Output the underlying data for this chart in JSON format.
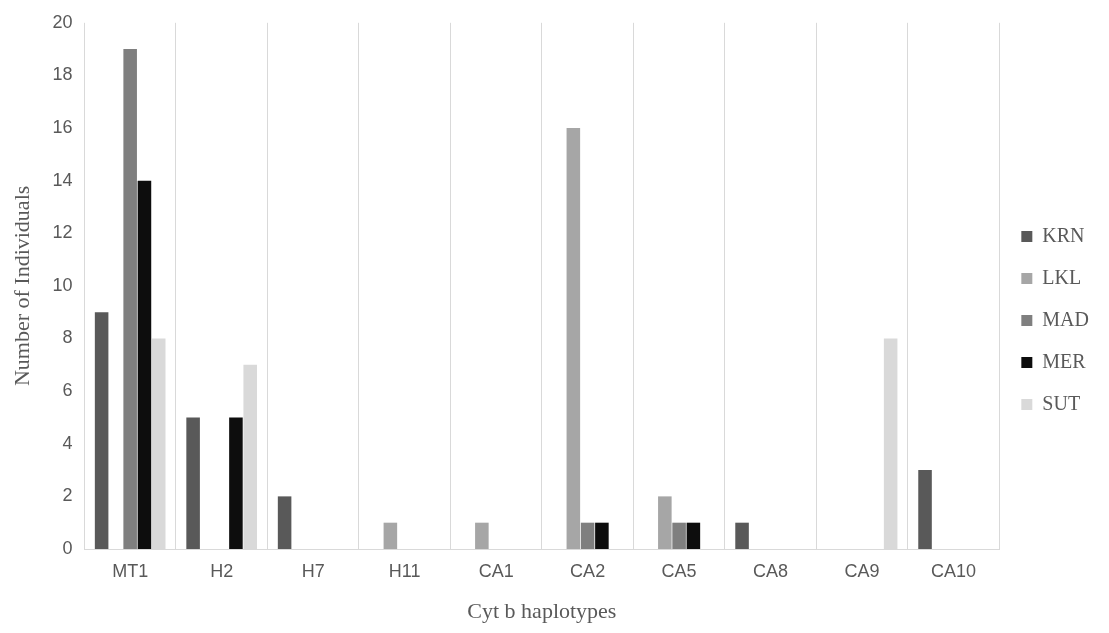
{
  "chart_data": {
    "type": "bar",
    "xlabel": "Cyt b haplotypes",
    "ylabel": "Number of Individuals",
    "categories": [
      "MT1",
      "H2",
      "H7",
      "H11",
      "CA1",
      "CA2",
      "CA5",
      "CA8",
      "CA9",
      "CA10"
    ],
    "series": [
      {
        "name": "KRN",
        "color": "#595959",
        "values": [
          9,
          5,
          2,
          0,
          0,
          0,
          0,
          1,
          0,
          3
        ]
      },
      {
        "name": "LKL",
        "color": "#a6a6a6",
        "values": [
          0,
          0,
          0,
          1,
          1,
          16,
          2,
          0,
          0,
          0
        ]
      },
      {
        "name": "MAD",
        "color": "#7f7f7f",
        "values": [
          19,
          0,
          0,
          0,
          0,
          1,
          1,
          0,
          0,
          0
        ]
      },
      {
        "name": "MER",
        "color": "#0d0d0d",
        "values": [
          14,
          5,
          0,
          0,
          0,
          1,
          1,
          0,
          0,
          0
        ]
      },
      {
        "name": "SUT",
        "color": "#d9d9d9",
        "values": [
          8,
          7,
          0,
          0,
          0,
          0,
          0,
          0,
          8,
          0
        ]
      }
    ],
    "ylim": [
      0,
      20
    ],
    "yticks": [
      0,
      2,
      4,
      6,
      8,
      10,
      12,
      14,
      16,
      18,
      20
    ],
    "grid": "x",
    "legend": "right"
  }
}
